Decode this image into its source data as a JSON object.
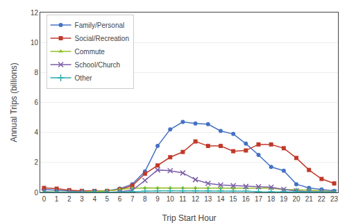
{
  "chart_data": {
    "type": "line",
    "xlabel": "Trip Start Hour",
    "ylabel": "Annual Trips (billions)",
    "x": [
      0,
      1,
      2,
      3,
      4,
      5,
      6,
      7,
      8,
      9,
      10,
      11,
      12,
      13,
      14,
      15,
      16,
      17,
      18,
      19,
      20,
      21,
      22,
      23
    ],
    "series": [
      {
        "name": "Family/Personal",
        "color": "#4472c4",
        "marker": "o",
        "values": [
          0.2,
          0.15,
          0.1,
          0.05,
          0.05,
          0.1,
          0.25,
          0.55,
          1.4,
          3.1,
          4.2,
          4.7,
          4.6,
          4.55,
          4.1,
          3.9,
          3.25,
          2.5,
          1.7,
          1.45,
          0.55,
          0.3,
          0.2,
          0.1
        ]
      },
      {
        "name": "Social/Recreation",
        "color": "#c0392b",
        "marker": "s",
        "values": [
          0.3,
          0.25,
          0.15,
          0.1,
          0.1,
          0.1,
          0.2,
          0.45,
          1.25,
          1.8,
          2.35,
          2.7,
          3.4,
          3.1,
          3.1,
          2.75,
          2.8,
          3.2,
          3.2,
          2.95,
          2.3,
          1.5,
          0.9,
          0.6
        ]
      },
      {
        "name": "Commute",
        "color": "#92c027",
        "marker": "^",
        "values": [
          0.05,
          0.02,
          0.02,
          0.02,
          0.05,
          0.1,
          0.2,
          0.28,
          0.3,
          0.3,
          0.3,
          0.3,
          0.3,
          0.3,
          0.28,
          0.28,
          0.3,
          0.3,
          0.28,
          0.2,
          0.18,
          0.15,
          0.1,
          0.05
        ]
      },
      {
        "name": "School/Church",
        "color": "#7b5ea7",
        "marker": "x",
        "values": [
          0.05,
          0.0,
          0.0,
          0.0,
          0.0,
          0.0,
          0.05,
          0.15,
          0.8,
          1.5,
          1.45,
          1.3,
          0.85,
          0.6,
          0.5,
          0.45,
          0.4,
          0.38,
          0.35,
          0.2,
          0.1,
          0.05,
          0.05,
          0.02
        ]
      },
      {
        "name": "Other",
        "color": "#2aabab",
        "marker": "+",
        "values": [
          0.0,
          0.0,
          0.0,
          0.0,
          0.0,
          0.0,
          0.02,
          0.05,
          0.08,
          0.1,
          0.1,
          0.1,
          0.1,
          0.1,
          0.1,
          0.08,
          0.08,
          0.05,
          0.05,
          0.05,
          0.04,
          0.02,
          0.02,
          0.0
        ]
      }
    ],
    "xlim": [
      -0.3,
      23.3
    ],
    "xticks": [
      0,
      1,
      2,
      3,
      4,
      5,
      6,
      7,
      8,
      9,
      10,
      11,
      12,
      13,
      14,
      15,
      16,
      17,
      18,
      19,
      20,
      21,
      22,
      23
    ],
    "ylim": [
      0,
      12
    ],
    "yticks": [
      0,
      2,
      4,
      6,
      8,
      10,
      12
    ],
    "grid": "y",
    "legend": "upper left"
  }
}
